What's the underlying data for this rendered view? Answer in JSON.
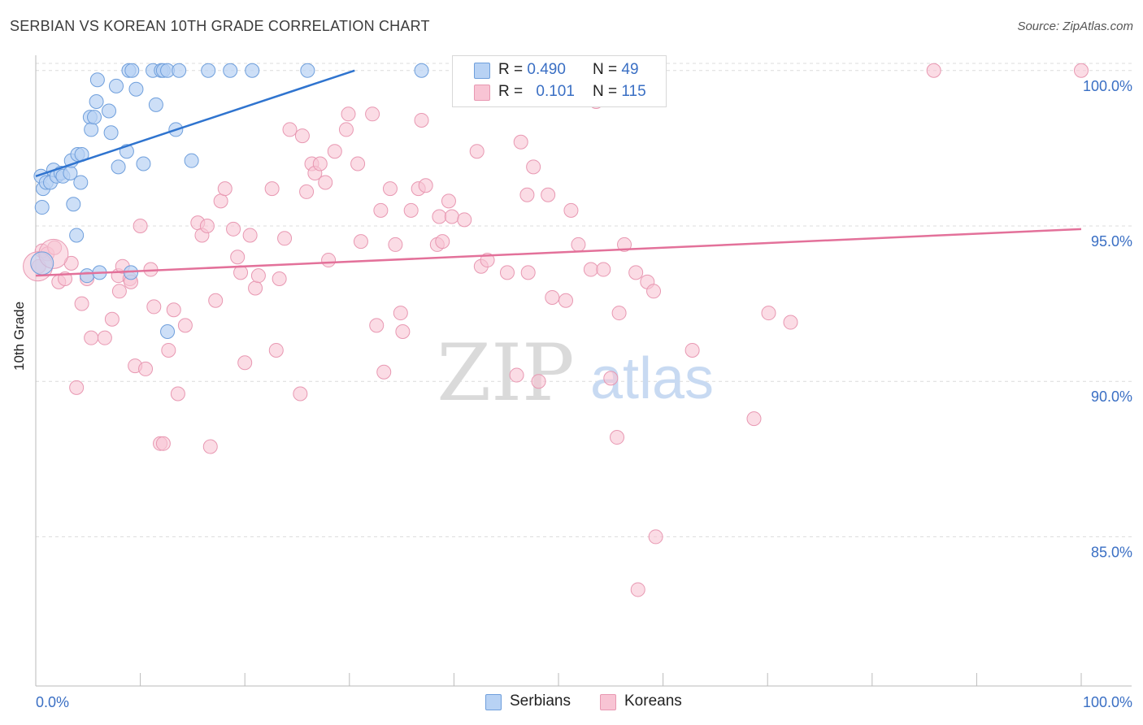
{
  "header": {
    "title": "SERBIAN VS KOREAN 10TH GRADE CORRELATION CHART",
    "source": "Source: ZipAtlas.com"
  },
  "watermark": {
    "zip": "ZIP",
    "atlas": "atlas"
  },
  "legend": {
    "serbians": {
      "r_label": "R = ",
      "r_value": "0.490",
      "n_label": "N = ",
      "n_value": "49"
    },
    "koreans": {
      "r_label": "R = ",
      "r_value": "0.101",
      "n_label": "N = ",
      "n_value": "115"
    }
  },
  "bottom_legend": {
    "serbians": "Serbians",
    "koreans": "Koreans"
  },
  "colors": {
    "serbian_fill": "#b8d2f4",
    "serbian_stroke": "#6f9fdc",
    "serbian_line": "#2f74cf",
    "korean_fill": "#f8c4d4",
    "korean_stroke": "#e898b2",
    "korean_line": "#e3719a",
    "tick_text": "#3a6fc4"
  },
  "chart_data": {
    "type": "scatter",
    "title": "SERBIAN VS KOREAN 10TH GRADE CORRELATION CHART",
    "ylabel": "10th Grade",
    "xlabel": "",
    "xlim": [
      0,
      100
    ],
    "ylim": [
      80.2,
      100.7
    ],
    "x_tick_labels": [
      "0.0%",
      "100.0%"
    ],
    "y_ticks": [
      85,
      90,
      95,
      100
    ],
    "y_tick_labels": [
      "85.0%",
      "90.0%",
      "95.0%",
      "100.0%"
    ],
    "grid": true,
    "series": [
      {
        "name": "Serbians",
        "points": [
          [
            0.5,
            96.6
          ],
          [
            0.6,
            95.6
          ],
          [
            0.7,
            96.2
          ],
          [
            1.0,
            96.4
          ],
          [
            1.4,
            96.4
          ],
          [
            1.7,
            96.8
          ],
          [
            2.0,
            96.6
          ],
          [
            2.4,
            96.7
          ],
          [
            2.6,
            96.6
          ],
          [
            3.3,
            96.7
          ],
          [
            3.4,
            97.1
          ],
          [
            3.6,
            95.7
          ],
          [
            3.9,
            94.7
          ],
          [
            4.0,
            97.3
          ],
          [
            4.4,
            97.3
          ],
          [
            4.3,
            96.4
          ],
          [
            4.9,
            93.4
          ],
          [
            5.2,
            98.5
          ],
          [
            5.3,
            98.1
          ],
          [
            5.6,
            98.5
          ],
          [
            5.8,
            99.0
          ],
          [
            5.9,
            99.7
          ],
          [
            6.1,
            93.5
          ],
          [
            7.0,
            98.7
          ],
          [
            7.2,
            98.0
          ],
          [
            7.7,
            99.5
          ],
          [
            7.9,
            96.9
          ],
          [
            8.7,
            97.4
          ],
          [
            8.9,
            100.0
          ],
          [
            9.1,
            93.5
          ],
          [
            9.2,
            100.0
          ],
          [
            9.6,
            99.4
          ],
          [
            10.3,
            97.0
          ],
          [
            11.2,
            100.0
          ],
          [
            11.5,
            98.9
          ],
          [
            12.0,
            100.0
          ],
          [
            12.2,
            100.0
          ],
          [
            12.6,
            100.0
          ],
          [
            12.6,
            91.6
          ],
          [
            13.4,
            98.1
          ],
          [
            13.7,
            100.0
          ],
          [
            14.9,
            97.1
          ],
          [
            16.5,
            100.0
          ],
          [
            18.6,
            100.0
          ],
          [
            20.7,
            100.0
          ],
          [
            26.0,
            100.0
          ],
          [
            36.9,
            100.0
          ],
          [
            40.8,
            100.0
          ],
          [
            0.6,
            93.8
          ]
        ],
        "trend": {
          "x": [
            0,
            30.5
          ],
          "y": [
            96.6,
            100.0
          ]
        }
      },
      {
        "name": "Koreans",
        "points": [
          [
            0.3,
            93.7
          ],
          [
            0.6,
            94.2
          ],
          [
            1.1,
            94.1
          ],
          [
            1.8,
            94.3
          ],
          [
            2.2,
            93.2
          ],
          [
            2.8,
            93.3
          ],
          [
            3.4,
            93.8
          ],
          [
            3.9,
            89.8
          ],
          [
            4.4,
            92.5
          ],
          [
            4.9,
            93.3
          ],
          [
            5.3,
            91.4
          ],
          [
            6.6,
            91.4
          ],
          [
            7.3,
            92.0
          ],
          [
            7.9,
            93.4
          ],
          [
            8.0,
            92.9
          ],
          [
            8.3,
            93.7
          ],
          [
            9.0,
            93.3
          ],
          [
            9.1,
            93.2
          ],
          [
            9.5,
            90.5
          ],
          [
            10.0,
            95.0
          ],
          [
            10.5,
            90.4
          ],
          [
            11.0,
            93.6
          ],
          [
            11.3,
            92.4
          ],
          [
            11.9,
            88.0
          ],
          [
            12.2,
            88.0
          ],
          [
            12.7,
            91.0
          ],
          [
            13.2,
            92.3
          ],
          [
            13.6,
            89.6
          ],
          [
            14.3,
            91.8
          ],
          [
            15.5,
            95.1
          ],
          [
            15.9,
            94.7
          ],
          [
            16.4,
            95.0
          ],
          [
            16.7,
            87.9
          ],
          [
            17.2,
            92.6
          ],
          [
            17.7,
            95.8
          ],
          [
            18.1,
            96.2
          ],
          [
            18.9,
            94.9
          ],
          [
            19.3,
            94.0
          ],
          [
            19.6,
            93.5
          ],
          [
            20.0,
            90.6
          ],
          [
            20.5,
            94.7
          ],
          [
            21.0,
            93.0
          ],
          [
            21.3,
            93.4
          ],
          [
            22.6,
            96.2
          ],
          [
            23.0,
            91.0
          ],
          [
            23.3,
            93.3
          ],
          [
            23.8,
            94.6
          ],
          [
            24.3,
            98.1
          ],
          [
            25.3,
            89.6
          ],
          [
            25.5,
            97.9
          ],
          [
            25.9,
            96.1
          ],
          [
            26.4,
            97.0
          ],
          [
            26.7,
            96.7
          ],
          [
            27.2,
            97.0
          ],
          [
            27.7,
            96.4
          ],
          [
            28.0,
            93.9
          ],
          [
            28.6,
            97.4
          ],
          [
            29.7,
            98.1
          ],
          [
            29.9,
            98.6
          ],
          [
            30.8,
            97.0
          ],
          [
            31.1,
            94.5
          ],
          [
            32.2,
            98.6
          ],
          [
            32.6,
            91.8
          ],
          [
            33.0,
            95.5
          ],
          [
            33.3,
            90.3
          ],
          [
            33.9,
            96.2
          ],
          [
            34.4,
            94.4
          ],
          [
            34.9,
            92.2
          ],
          [
            35.1,
            91.6
          ],
          [
            35.9,
            95.5
          ],
          [
            36.6,
            96.2
          ],
          [
            36.9,
            98.4
          ],
          [
            37.3,
            96.3
          ],
          [
            38.4,
            94.4
          ],
          [
            38.6,
            95.3
          ],
          [
            38.9,
            94.5
          ],
          [
            39.5,
            95.8
          ],
          [
            39.8,
            95.3
          ],
          [
            40.7,
            100.0
          ],
          [
            41.0,
            95.2
          ],
          [
            42.2,
            97.4
          ],
          [
            42.6,
            93.7
          ],
          [
            43.2,
            93.9
          ],
          [
            45.1,
            93.5
          ],
          [
            46.0,
            90.2
          ],
          [
            46.4,
            97.7
          ],
          [
            47.0,
            96.0
          ],
          [
            47.1,
            93.5
          ],
          [
            47.6,
            96.9
          ],
          [
            48.1,
            90.0
          ],
          [
            49.0,
            96.0
          ],
          [
            49.4,
            92.7
          ],
          [
            50.7,
            92.6
          ],
          [
            51.2,
            95.5
          ],
          [
            51.9,
            94.4
          ],
          [
            53.1,
            93.6
          ],
          [
            53.6,
            99.0
          ],
          [
            54.3,
            93.6
          ],
          [
            55.0,
            90.1
          ],
          [
            55.6,
            88.2
          ],
          [
            55.8,
            92.2
          ],
          [
            56.3,
            94.4
          ],
          [
            57.4,
            93.5
          ],
          [
            57.6,
            83.3
          ],
          [
            58.5,
            93.2
          ],
          [
            59.1,
            92.9
          ],
          [
            59.3,
            85.0
          ],
          [
            62.8,
            91.0
          ],
          [
            68.7,
            88.8
          ],
          [
            70.1,
            92.2
          ],
          [
            72.2,
            91.9
          ],
          [
            85.9,
            100.0
          ],
          [
            100.0,
            100.0
          ],
          [
            0.2,
            93.7
          ],
          [
            1.7,
            94.1
          ]
        ],
        "trend": {
          "x": [
            0,
            100
          ],
          "y": [
            93.4,
            94.9
          ]
        }
      }
    ]
  }
}
